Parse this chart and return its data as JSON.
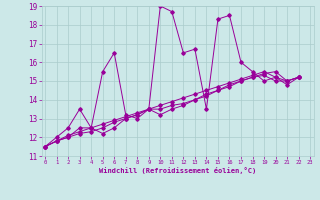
{
  "xlabel": "Windchill (Refroidissement éolien,°C)",
  "bg_color": "#cce8e8",
  "grid_color": "#aacccc",
  "line_color": "#990099",
  "xmin": 0,
  "xmax": 23,
  "ymin": 11,
  "ymax": 19,
  "series": [
    [
      11.5,
      12.0,
      12.5,
      13.5,
      12.5,
      15.5,
      16.5,
      13.2,
      13.0,
      13.5,
      19.0,
      18.7,
      16.5,
      16.7,
      13.5,
      18.3,
      18.5,
      16.0,
      15.5,
      15.0,
      15.2,
      14.8,
      15.2
    ],
    [
      11.5,
      11.8,
      12.0,
      12.5,
      12.5,
      12.2,
      12.5,
      13.0,
      13.2,
      13.5,
      13.2,
      13.5,
      13.7,
      14.0,
      14.3,
      14.5,
      14.8,
      15.0,
      15.2,
      15.3,
      15.0,
      15.0,
      15.2
    ],
    [
      11.5,
      11.8,
      12.0,
      12.2,
      12.3,
      12.5,
      12.8,
      13.0,
      13.2,
      13.5,
      13.5,
      13.7,
      13.8,
      14.0,
      14.2,
      14.5,
      14.7,
      15.0,
      15.2,
      15.4,
      15.5,
      15.0,
      15.2
    ],
    [
      11.5,
      11.8,
      12.1,
      12.3,
      12.5,
      12.7,
      12.9,
      13.1,
      13.3,
      13.5,
      13.7,
      13.9,
      14.1,
      14.3,
      14.5,
      14.7,
      14.9,
      15.1,
      15.3,
      15.5,
      15.2,
      15.0,
      15.2
    ]
  ]
}
